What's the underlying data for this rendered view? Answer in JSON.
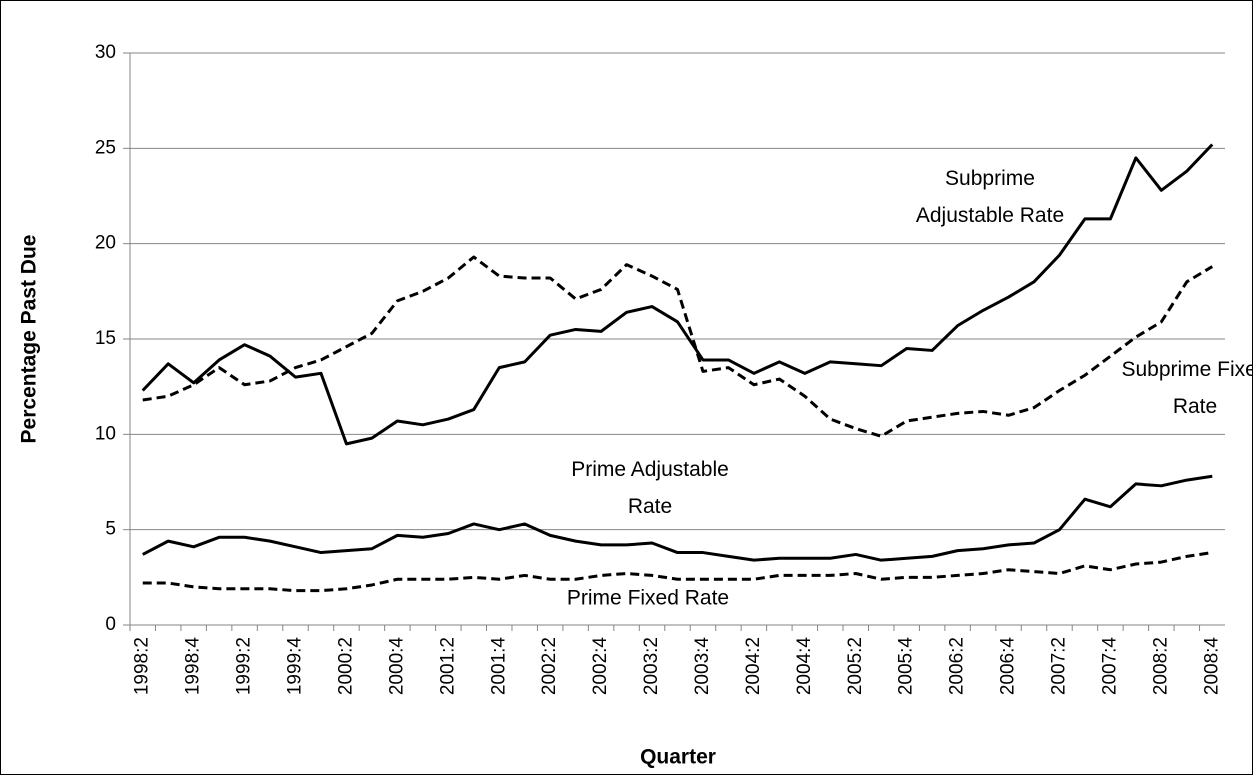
{
  "chart_data": {
    "type": "line",
    "y_label": "Percentage Past Due",
    "x_label": "Quarter",
    "categories": [
      "1998:2",
      null,
      "1998:4",
      null,
      "1999:2",
      null,
      "1999:4",
      null,
      "2000:2",
      null,
      "2000:4",
      null,
      "2001:2",
      null,
      "2001:4",
      null,
      "2002:2",
      null,
      "2002:4",
      null,
      "2003:2",
      null,
      "2003:4",
      null,
      "2004:2",
      null,
      "2004:4",
      null,
      "2005:2",
      null,
      "2005:4",
      null,
      "2006:2",
      null,
      "2006:4",
      null,
      "2007:2",
      null,
      "2007:4",
      null,
      "2008:2",
      null,
      "2008:4"
    ],
    "series": [
      {
        "name": "Subprime Adjustable Rate",
        "color": "#000000",
        "style": "solid",
        "values": [
          12.3,
          13.7,
          12.7,
          13.9,
          14.7,
          14.1,
          13.0,
          13.2,
          9.5,
          9.8,
          10.7,
          10.5,
          10.8,
          11.3,
          13.5,
          13.8,
          15.2,
          15.5,
          15.4,
          16.4,
          16.7,
          15.9,
          13.9,
          13.9,
          13.2,
          13.8,
          13.2,
          13.8,
          13.7,
          13.6,
          14.5,
          14.4,
          15.7,
          16.5,
          17.2,
          18.0,
          19.4,
          21.3,
          21.3,
          24.5,
          22.8,
          23.8,
          25.2
        ]
      },
      {
        "name": "Subprime Fixed Rate",
        "color": "#000000",
        "style": "dashed",
        "values": [
          11.8,
          12.0,
          12.6,
          13.5,
          12.6,
          12.8,
          13.5,
          13.9,
          14.6,
          15.3,
          17.0,
          17.5,
          18.2,
          19.3,
          18.3,
          18.2,
          18.2,
          17.1,
          17.6,
          18.9,
          18.3,
          17.6,
          13.3,
          13.5,
          12.6,
          12.9,
          12.0,
          10.8,
          10.3,
          9.9,
          10.7,
          10.9,
          11.1,
          11.2,
          11.0,
          11.4,
          12.3,
          13.1,
          14.1,
          15.1,
          15.9,
          18.0,
          18.8
        ]
      },
      {
        "name": "Prime Adjustable Rate",
        "color": "#000000",
        "style": "solid",
        "values": [
          3.7,
          4.4,
          4.1,
          4.6,
          4.6,
          4.4,
          4.1,
          3.8,
          3.9,
          4.0,
          4.7,
          4.6,
          4.8,
          5.3,
          5.0,
          5.3,
          4.7,
          4.4,
          4.2,
          4.2,
          4.3,
          3.8,
          3.8,
          3.6,
          3.4,
          3.5,
          3.5,
          3.5,
          3.7,
          3.4,
          3.5,
          3.6,
          3.9,
          4.0,
          4.2,
          4.3,
          5.0,
          6.6,
          6.2,
          7.4,
          7.3,
          7.6,
          7.8
        ]
      },
      {
        "name": "Prime Fixed Rate",
        "color": "#000000",
        "style": "dashed",
        "values": [
          2.2,
          2.2,
          2.0,
          1.9,
          1.9,
          1.9,
          1.8,
          1.8,
          1.9,
          2.1,
          2.4,
          2.4,
          2.4,
          2.5,
          2.4,
          2.6,
          2.4,
          2.4,
          2.6,
          2.7,
          2.6,
          2.4,
          2.4,
          2.4,
          2.4,
          2.6,
          2.6,
          2.6,
          2.7,
          2.4,
          2.5,
          2.5,
          2.6,
          2.7,
          2.9,
          2.8,
          2.7,
          3.1,
          2.9,
          3.2,
          3.3,
          3.6,
          3.8
        ]
      }
    ],
    "ylim": [
      0,
      30
    ],
    "yticks": [
      0,
      5,
      10,
      15,
      20,
      25,
      30
    ],
    "grid": true
  }
}
